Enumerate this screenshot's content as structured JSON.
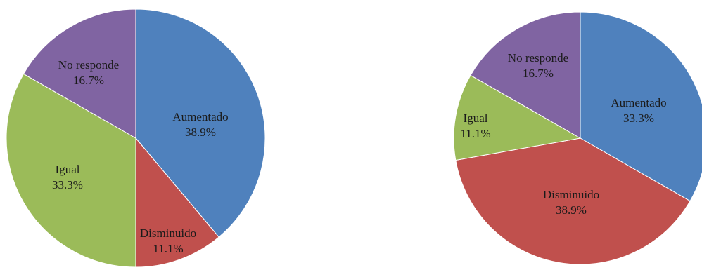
{
  "chart_data": [
    {
      "type": "pie",
      "categories": [
        "Aumentado",
        "Disminuido",
        "Igual",
        "No responde"
      ],
      "values": [
        38.9,
        11.1,
        33.3,
        16.7
      ],
      "value_labels": [
        "38.9%",
        "11.1%",
        "33.3%",
        "16.7%"
      ],
      "colors": [
        "#4f81bd",
        "#c0504d",
        "#9bbb59",
        "#8064a2"
      ],
      "start_angle": "12 o'clock",
      "direction": "clockwise",
      "title": "",
      "legend": "none"
    },
    {
      "type": "pie",
      "categories": [
        "Aumentado",
        "Disminuido",
        "Igual",
        "No responde"
      ],
      "values": [
        33.3,
        38.9,
        11.1,
        16.7
      ],
      "value_labels": [
        "33.3%",
        "38.9%",
        "11.1%",
        "16.7%"
      ],
      "colors": [
        "#4f81bd",
        "#c0504d",
        "#9bbb59",
        "#8064a2"
      ],
      "start_angle": "12 o'clock",
      "direction": "clockwise",
      "title": "",
      "legend": "none"
    }
  ]
}
